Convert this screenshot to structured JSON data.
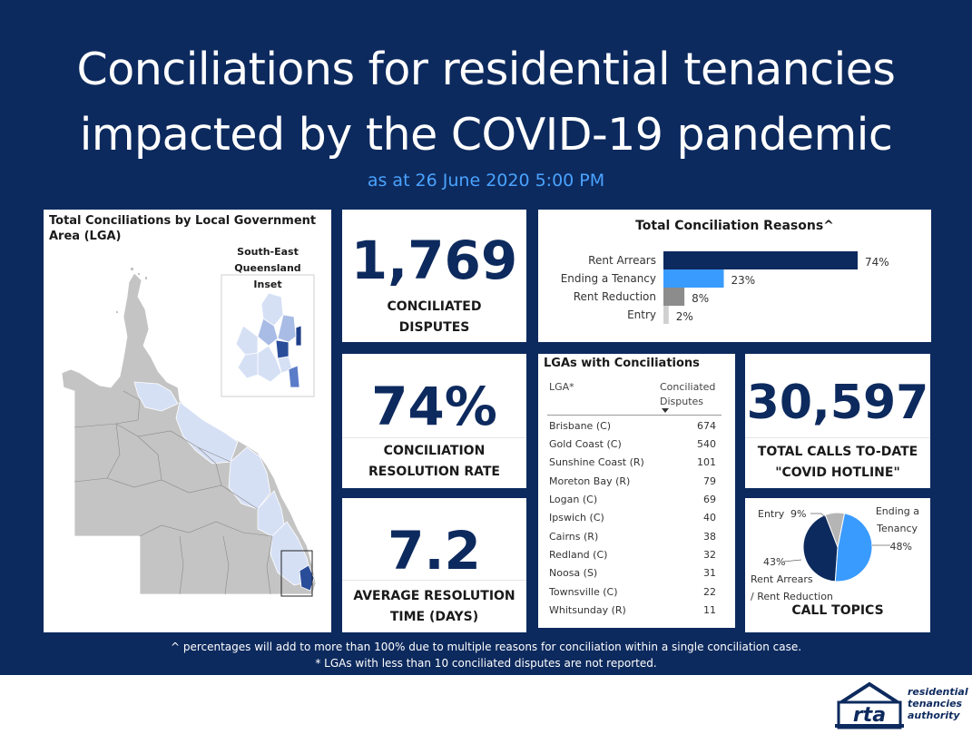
{
  "title_line1": "Conciliations for residential tenancies",
  "title_line2": "impacted by the COVID-19 pandemic",
  "subtitle": "as at 26 June 2020 5:00 PM",
  "map": {
    "title": "Total Conciliations by Local Government Area (LGA)",
    "inset_label_1": "South-East",
    "inset_label_2": "Queensland Inset"
  },
  "kpis": {
    "conciliated": {
      "value": "1,769",
      "label_1": "CONCILIATED",
      "label_2": "DISPUTES"
    },
    "resolution_rate": {
      "value": "74%",
      "label_1": "CONCILIATION",
      "label_2": "RESOLUTION RATE"
    },
    "resolution_time": {
      "value": "7.2",
      "label_1": "AVERAGE RESOLUTION",
      "label_2": "TIME (DAYS)"
    },
    "calls": {
      "value": "30,597",
      "label_1": "TOTAL CALLS TO-DATE",
      "label_2": "\"COVID HOTLINE\""
    }
  },
  "lga_table": {
    "title": "LGAs with Conciliations",
    "col_lga": "LGA*",
    "col_disputes_1": "Conciliated",
    "col_disputes_2": "Disputes",
    "sort_icon": "sort-descending-icon",
    "rows": [
      {
        "name": "Brisbane (C)",
        "value": "674"
      },
      {
        "name": "Gold Coast (C)",
        "value": "540"
      },
      {
        "name": "Sunshine Coast (R)",
        "value": "101"
      },
      {
        "name": "Moreton Bay (R)",
        "value": "79"
      },
      {
        "name": "Logan (C)",
        "value": "69"
      },
      {
        "name": "Ipswich (C)",
        "value": "40"
      },
      {
        "name": "Cairns (R)",
        "value": "38"
      },
      {
        "name": "Redland (C)",
        "value": "32"
      },
      {
        "name": "Noosa (S)",
        "value": "31"
      },
      {
        "name": "Townsville (C)",
        "value": "22"
      },
      {
        "name": "Whitsunday (R)",
        "value": "11"
      }
    ]
  },
  "footnote_1": "^ percentages will add to more than 100% due to multiple reasons for conciliation within a single conciliation case.",
  "footnote_2": "* LGAs with less than 10 conciliated disputes are not reported.",
  "logo": {
    "mark": "rta",
    "line_1": "residential",
    "line_2": "tenancies",
    "line_3": "authority"
  },
  "colors": {
    "navy": "#0d2a5e",
    "blue": "#3a9bff",
    "grey": "#8c8c8c",
    "lightgrey": "#d0d0d0",
    "subtitle": "#4aa3ff"
  },
  "chart_data": [
    {
      "type": "bar",
      "orientation": "horizontal",
      "title": "Total Conciliation Reasons^",
      "categories": [
        "Rent Arrears",
        "Ending a Tenancy",
        "Rent Reduction",
        "Entry"
      ],
      "values": [
        74,
        23,
        8,
        2
      ],
      "value_labels": [
        "74%",
        "23%",
        "8%",
        "2%"
      ],
      "unit": "%",
      "colors": [
        "#0d2a5e",
        "#3a9bff",
        "#8c8c8c",
        "#d0d0d0"
      ]
    },
    {
      "type": "pie",
      "title": "CALL TOPICS",
      "slices": [
        {
          "name": "Ending a Tenancy",
          "label_1": "Ending a",
          "label_2": "Tenancy",
          "value": 48,
          "value_label": "48%",
          "color": "#3a9bff"
        },
        {
          "name": "Rent Arrears / Rent Reduction",
          "label_1": "Rent Arrears",
          "label_2": "/ Rent Reduction",
          "value": 43,
          "value_label": "43%",
          "color": "#0d2a5e"
        },
        {
          "name": "Entry",
          "label_1": "Entry",
          "label_2": "",
          "value": 9,
          "value_label": "9%",
          "color": "#b5b5b5"
        }
      ]
    }
  ]
}
